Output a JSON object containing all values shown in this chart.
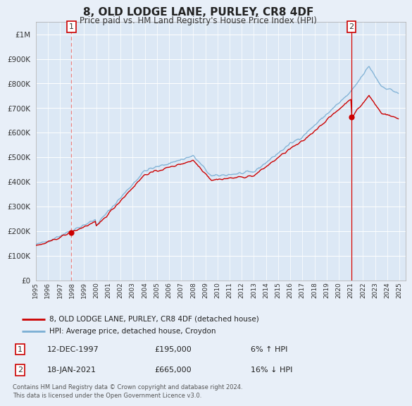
{
  "title": "8, OLD LODGE LANE, PURLEY, CR8 4DF",
  "subtitle": "Price paid vs. HM Land Registry's House Price Index (HPI)",
  "background_color": "#e8eff8",
  "plot_bg_color": "#dce8f5",
  "ylim": [
    0,
    1050000
  ],
  "yticks": [
    0,
    100000,
    200000,
    300000,
    400000,
    500000,
    600000,
    700000,
    800000,
    900000,
    1000000
  ],
  "ytick_labels": [
    "£0",
    "£100K",
    "£200K",
    "£300K",
    "£400K",
    "£500K",
    "£600K",
    "£700K",
    "£800K",
    "£900K",
    "£1M"
  ],
  "xmin": 1995.0,
  "xmax": 2025.5,
  "sale1_year": 1997.95,
  "sale1_price": 195000,
  "sale2_year": 2021.05,
  "sale2_price": 665000,
  "legend_line1": "8, OLD LODGE LANE, PURLEY, CR8 4DF (detached house)",
  "legend_line2": "HPI: Average price, detached house, Croydon",
  "annotation1_text1": "12-DEC-1997",
  "annotation1_text2": "£195,000",
  "annotation1_text3": "6% ↑ HPI",
  "annotation2_text1": "18-JAN-2021",
  "annotation2_text2": "£665,000",
  "annotation2_text3": "16% ↓ HPI",
  "footer": "Contains HM Land Registry data © Crown copyright and database right 2024.\nThis data is licensed under the Open Government Licence v3.0.",
  "sale_color": "#cc0000",
  "hpi_color": "#7bafd4",
  "dashed_color_1": "#e88080",
  "dashed_color_2": "#cc0000",
  "grid_color": "#ffffff",
  "border_color": "#aaaaaa"
}
